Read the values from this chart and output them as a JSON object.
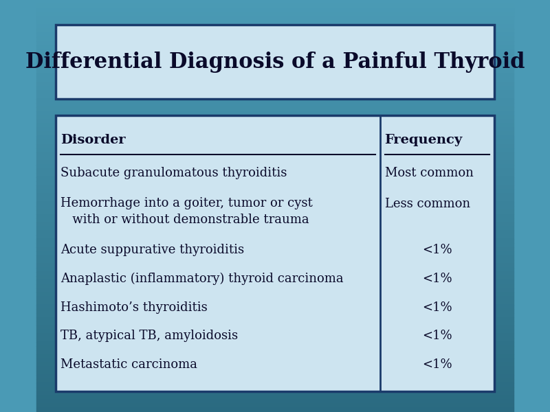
{
  "title": "Differential Diagnosis of a Painful Thyroid",
  "title_fontsize": 22,
  "title_bold": true,
  "col1_header": "Disorder",
  "col2_header": "Frequency",
  "rows": [
    [
      "Subacute granulomatous thyroiditis",
      "Most common"
    ],
    [
      "Hemorrhage into a goiter, tumor or cyst\n   with or without demonstrable trauma",
      "Less common"
    ],
    [
      "Acute suppurative thyroiditis",
      "<1%"
    ],
    [
      "Anaplastic (inflammatory) thyroid carcinoma",
      "<1%"
    ],
    [
      "Hashimoto’s thyroiditis",
      "<1%"
    ],
    [
      "TB, atypical TB, amyloidosis",
      "<1%"
    ],
    [
      "Metastatic carcinoma",
      "<1%"
    ]
  ],
  "bg_color_top": "#4a9ab5",
  "bg_color_bottom": "#2a6a80",
  "box_bg_color": "#cde4f0",
  "box_border_color": "#1a3a6a",
  "title_box_color": "#cde4f0",
  "text_color": "#0a0a2a",
  "font_family": "serif",
  "table_font_size": 13,
  "header_font_size": 14,
  "col_split": 0.72
}
